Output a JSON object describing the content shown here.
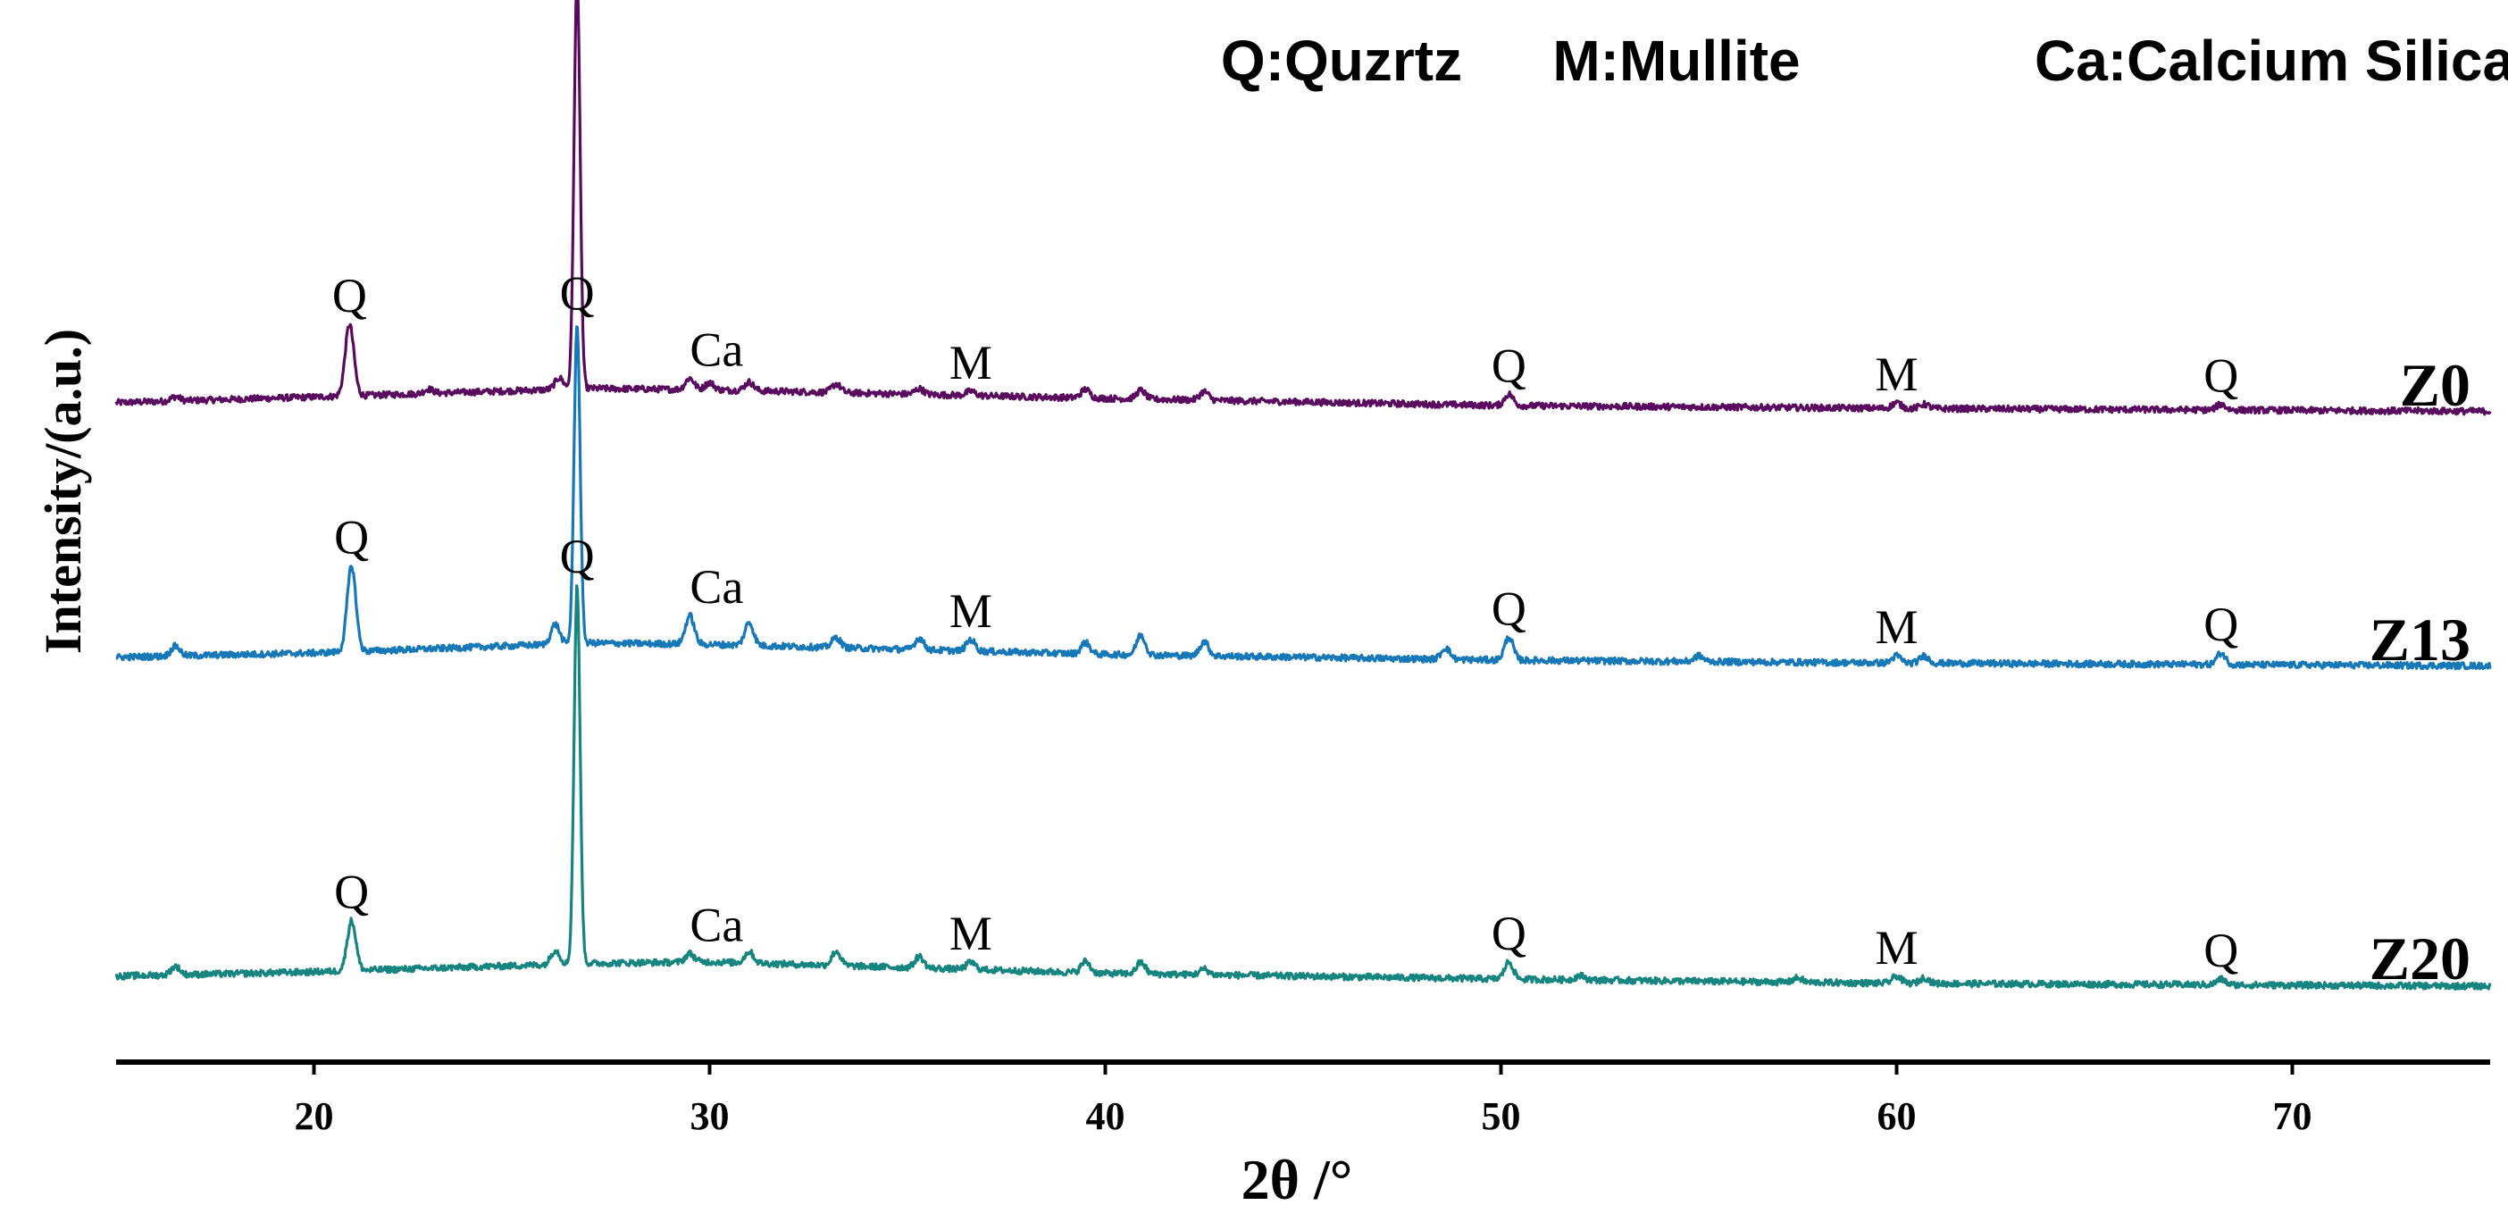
{
  "chart_data": {
    "type": "line",
    "xlabel": "2θ /°",
    "ylabel": "Intensity/(a.u.)",
    "xlim": [
      15,
      75
    ],
    "x_ticks": [
      "20",
      "30",
      "40",
      "50",
      "60",
      "70"
    ],
    "y_ticks": "none",
    "grid": false,
    "phase_legend": [
      "Q:Quzrtz",
      "M:Mullite",
      "Ca:Calcium Silicate"
    ],
    "legend_position": "top-right",
    "series": [
      {
        "name": "Z0",
        "color": "#5a0a5e",
        "baseline": [
          [
            15,
            12
          ],
          [
            20,
            16
          ],
          [
            27,
            22
          ],
          [
            30,
            21
          ],
          [
            40,
            15
          ],
          [
            50,
            10
          ],
          [
            60,
            8
          ],
          [
            75,
            6
          ]
        ],
        "peaks": [
          [
            16.5,
            3
          ],
          [
            20.9,
            50
          ],
          [
            22.9,
            3
          ],
          [
            26.2,
            8
          ],
          [
            26.65,
            290
          ],
          [
            29.5,
            8
          ],
          [
            30.0,
            5
          ],
          [
            31.0,
            6
          ],
          [
            33.2,
            6
          ],
          [
            35.3,
            4
          ],
          [
            36.6,
            3
          ],
          [
            39.5,
            6
          ],
          [
            40.9,
            6
          ],
          [
            42.5,
            6
          ],
          [
            50.2,
            8
          ],
          [
            60.0,
            4
          ],
          [
            60.7,
            3
          ],
          [
            68.2,
            4
          ]
        ],
        "peak_labels": [
          {
            "text": "Q",
            "x": 20.9
          },
          {
            "text": "Q",
            "x": 26.65
          },
          {
            "text": "Ca",
            "x": 29.5
          },
          {
            "text": "M",
            "x": 36.6
          },
          {
            "text": "Q",
            "x": 50.2
          },
          {
            "text": "M",
            "x": 60.0
          },
          {
            "text": "Q",
            "x": 68.2
          }
        ]
      },
      {
        "name": "Z13",
        "color": "#1778b8",
        "baseline": [
          [
            15,
            12
          ],
          [
            20,
            15
          ],
          [
            27,
            22
          ],
          [
            30,
            21
          ],
          [
            40,
            14
          ],
          [
            50,
            10
          ],
          [
            60,
            8
          ],
          [
            75,
            6
          ]
        ],
        "peaks": [
          [
            16.5,
            7
          ],
          [
            20.95,
            60
          ],
          [
            26.1,
            14
          ],
          [
            26.65,
            225
          ],
          [
            29.5,
            20
          ],
          [
            31.0,
            16
          ],
          [
            33.2,
            7
          ],
          [
            35.3,
            8
          ],
          [
            36.6,
            8
          ],
          [
            39.5,
            8
          ],
          [
            40.9,
            14
          ],
          [
            42.5,
            10
          ],
          [
            48.6,
            8
          ],
          [
            50.2,
            16
          ],
          [
            55.0,
            4
          ],
          [
            60.0,
            5
          ],
          [
            60.7,
            5
          ],
          [
            68.2,
            8
          ]
        ],
        "peak_labels": [
          {
            "text": "Q",
            "x": 20.95
          },
          {
            "text": "Q",
            "x": 26.65
          },
          {
            "text": "Ca",
            "x": 29.5
          },
          {
            "text": "M",
            "x": 36.6
          },
          {
            "text": "Q",
            "x": 50.2
          },
          {
            "text": "M",
            "x": 60.0
          },
          {
            "text": "Q",
            "x": 68.2
          }
        ]
      },
      {
        "name": "Z20",
        "color": "#168580",
        "baseline": [
          [
            15,
            12
          ],
          [
            20,
            15
          ],
          [
            27,
            21
          ],
          [
            30,
            22
          ],
          [
            40,
            14
          ],
          [
            50,
            10
          ],
          [
            60,
            7
          ],
          [
            75,
            5
          ]
        ],
        "peaks": [
          [
            16.5,
            6
          ],
          [
            20.95,
            35
          ],
          [
            26.1,
            10
          ],
          [
            26.65,
            265
          ],
          [
            29.5,
            6
          ],
          [
            31.0,
            8
          ],
          [
            33.2,
            10
          ],
          [
            35.3,
            8
          ],
          [
            36.6,
            5
          ],
          [
            39.5,
            8
          ],
          [
            40.9,
            8
          ],
          [
            42.5,
            4
          ],
          [
            50.2,
            12
          ],
          [
            52.0,
            3
          ],
          [
            57.5,
            3
          ],
          [
            60.0,
            5
          ],
          [
            60.7,
            4
          ],
          [
            68.2,
            4
          ]
        ],
        "peak_labels": [
          {
            "text": "Q",
            "x": 20.95
          },
          {
            "text": "Q",
            "x": 26.65
          },
          {
            "text": "Ca",
            "x": 29.5
          },
          {
            "text": "M",
            "x": 36.6
          },
          {
            "text": "Q",
            "x": 50.2
          },
          {
            "text": "M",
            "x": 60.0
          },
          {
            "text": "Q",
            "x": 68.2
          }
        ]
      }
    ]
  }
}
